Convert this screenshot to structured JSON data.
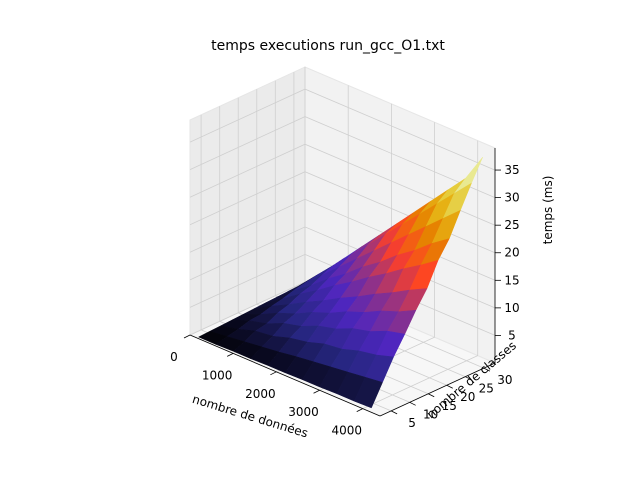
{
  "chart_data": {
    "type": "surface3d",
    "title": "temps executions run_gcc_O1.txt",
    "xlabel": "nombre de données",
    "ylabel": "nombre de classes",
    "zlabel": "temps (ms)",
    "x_ticks": [
      "0",
      "1000",
      "2000",
      "3000",
      "4000"
    ],
    "y_ticks": [
      "5",
      "10",
      "15",
      "20",
      "25",
      "30"
    ],
    "z_ticks": [
      "5",
      "10",
      "15",
      "20",
      "25",
      "30",
      "35"
    ],
    "xlim": [
      0,
      4400
    ],
    "ylim": [
      2,
      33
    ],
    "zlim": [
      0,
      39
    ],
    "colormap": "CMRmap",
    "grid": true,
    "x": [
      200,
      600,
      1000,
      1400,
      1800,
      2200,
      2600,
      3000,
      3400,
      3800,
      4200
    ],
    "y": [
      2,
      5,
      8,
      11,
      14,
      17,
      20,
      23,
      26,
      29,
      32
    ],
    "z": [
      [
        0.3,
        0.3,
        0.4,
        0.4,
        0.5,
        0.5,
        0.6,
        0.6,
        0.7,
        0.7,
        0.8
      ],
      [
        0.4,
        0.8,
        1.2,
        1.6,
        2.0,
        2.5,
        2.9,
        3.3,
        3.7,
        4.1,
        4.5
      ],
      [
        0.5,
        1.2,
        2.2,
        2.6,
        3.6,
        4.2,
        5.2,
        5.6,
        6.6,
        7.2,
        8.2
      ],
      [
        0.6,
        1.8,
        2.6,
        4.0,
        4.8,
        6.2,
        7.0,
        8.4,
        9.2,
        10.6,
        11.4
      ],
      [
        0.7,
        2.0,
        3.6,
        4.8,
        6.4,
        7.6,
        9.2,
        10.4,
        12.0,
        13.2,
        14.8
      ],
      [
        0.8,
        2.6,
        4.2,
        6.0,
        7.6,
        9.4,
        11.0,
        12.8,
        14.4,
        16.2,
        17.8
      ],
      [
        0.9,
        3.0,
        5.2,
        7.2,
        9.4,
        11.4,
        13.6,
        15.6,
        17.8,
        19.8,
        22.0
      ],
      [
        1.0,
        3.6,
        5.8,
        8.4,
        10.6,
        13.2,
        15.4,
        18.0,
        20.2,
        22.8,
        25.0
      ],
      [
        1.1,
        4.0,
        6.8,
        9.6,
        12.4,
        15.2,
        18.0,
        20.8,
        23.6,
        26.4,
        29.2
      ],
      [
        1.2,
        4.4,
        7.6,
        10.8,
        14.0,
        17.2,
        20.4,
        23.6,
        26.8,
        30.0,
        33.2
      ],
      [
        1.2,
        4.6,
        8.0,
        11.4,
        14.8,
        18.2,
        21.6,
        25.0,
        28.4,
        31.8,
        37.0
      ]
    ]
  }
}
